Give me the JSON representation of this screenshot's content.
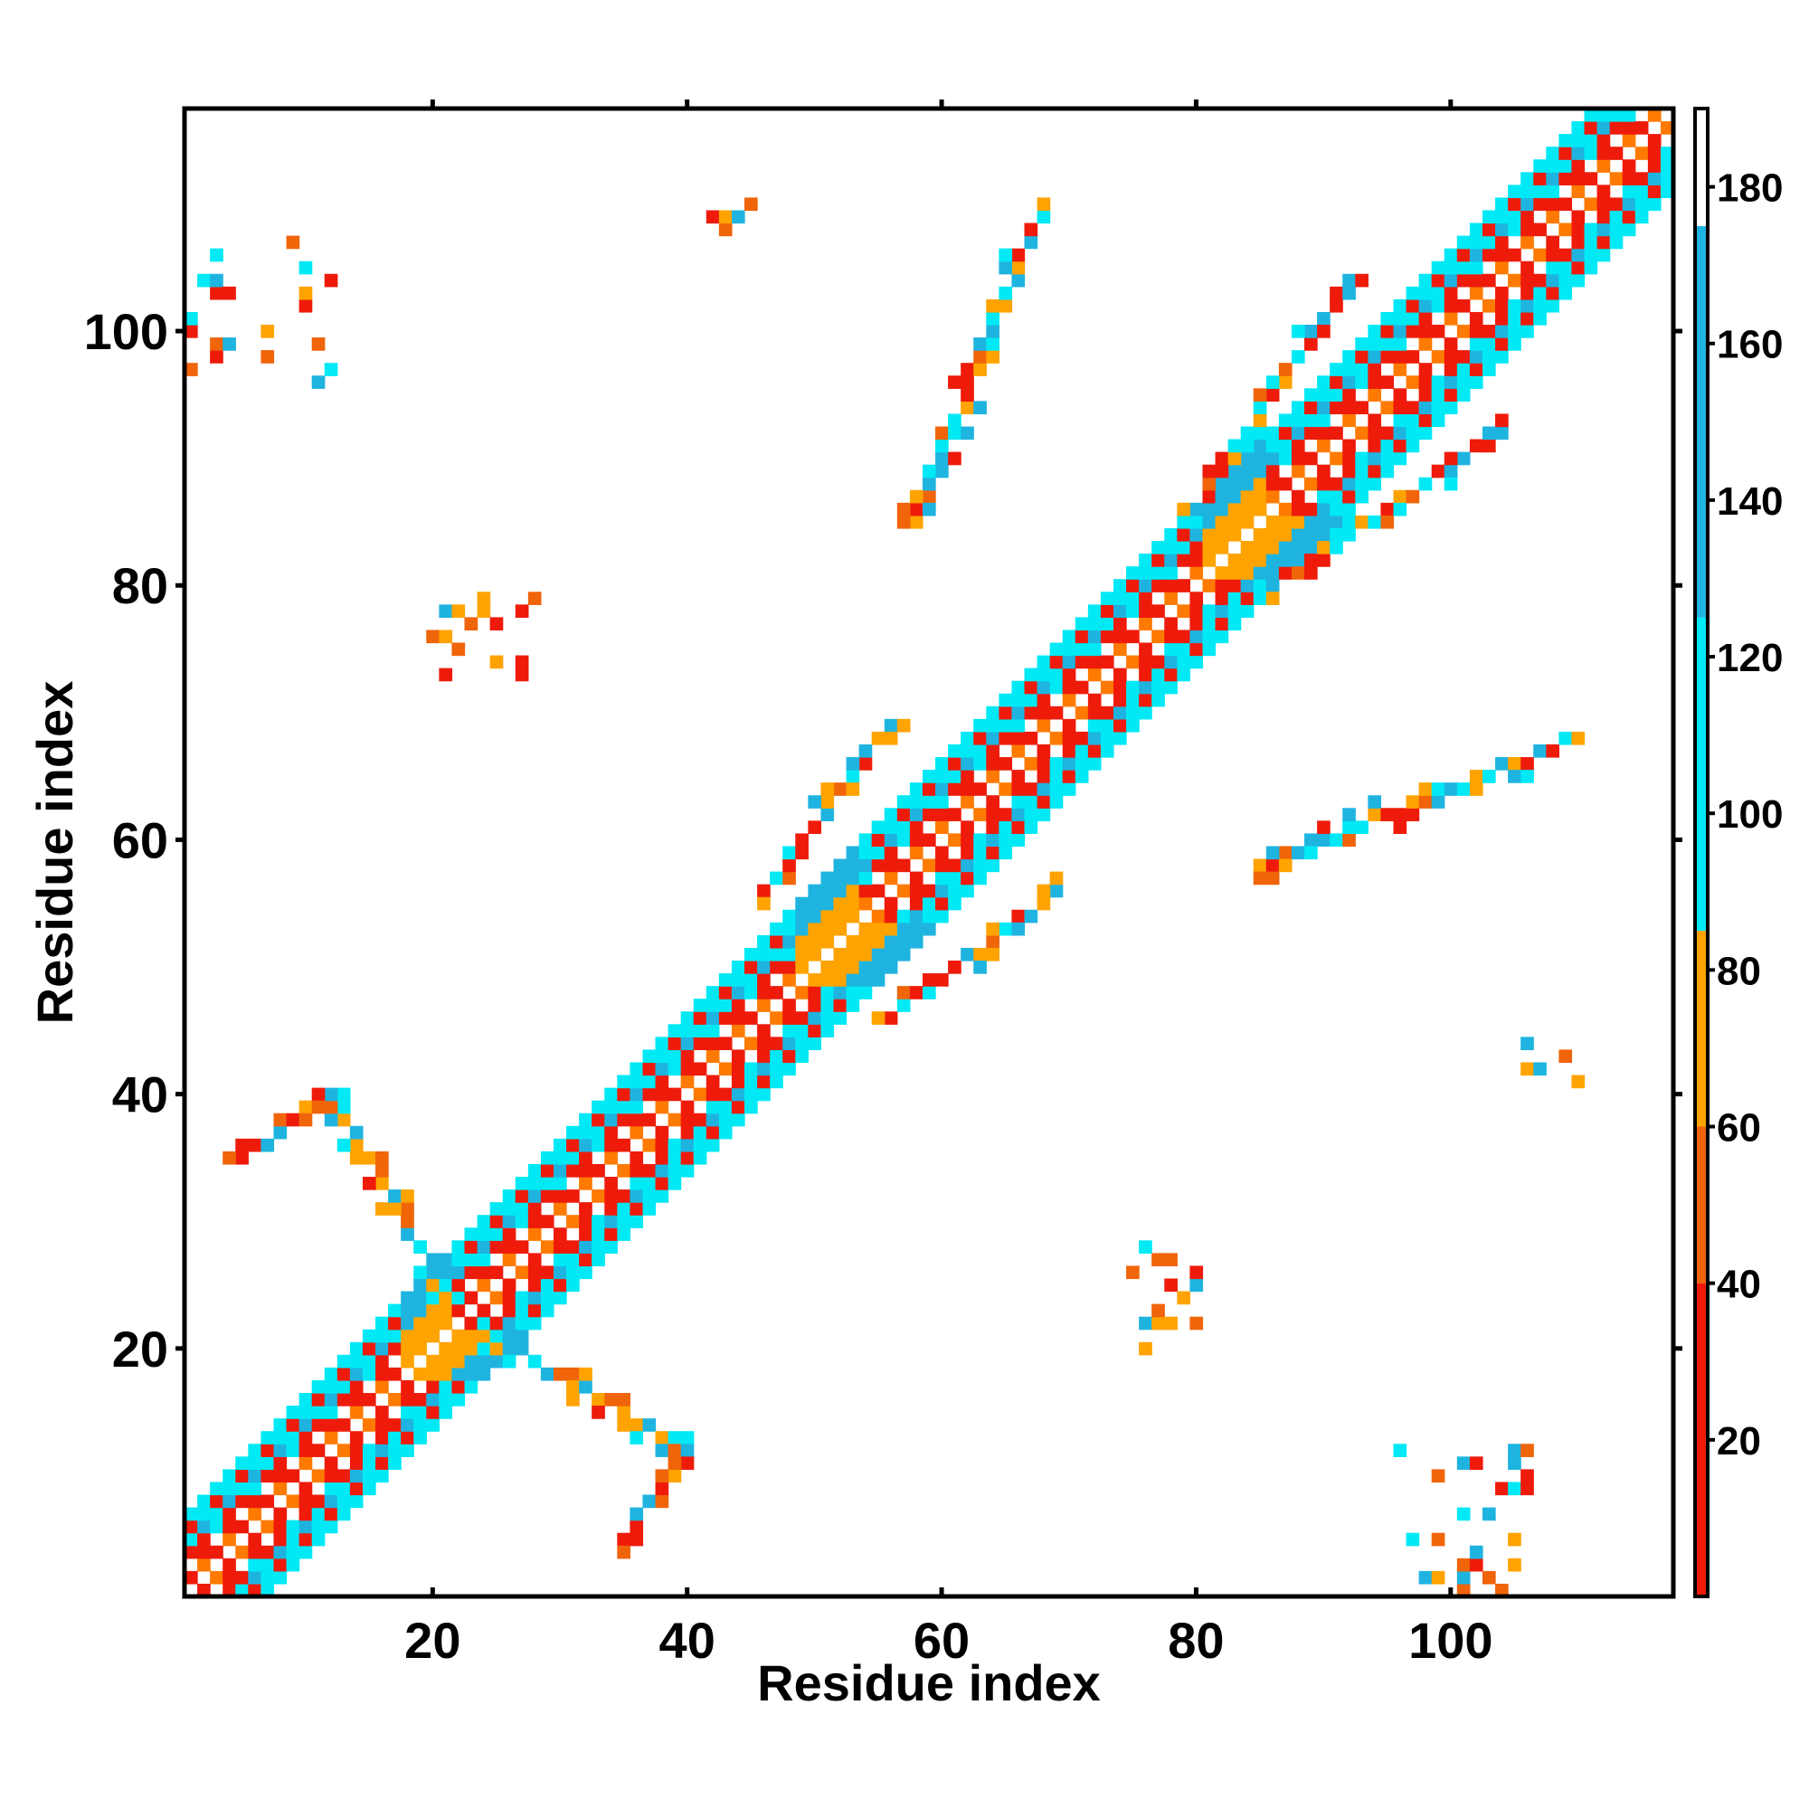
{
  "chart_data": {
    "type": "heatmap",
    "title": "",
    "xlabel": "Residue index",
    "ylabel": "Residue index",
    "xlim": [
      0.5,
      117.5
    ],
    "ylim": [
      0.5,
      117.5
    ],
    "x_ticks": [
      20,
      40,
      60,
      80,
      100
    ],
    "y_ticks": [
      20,
      40,
      60,
      80,
      100
    ],
    "colorbar": {
      "ticks": [
        20,
        40,
        60,
        80,
        100,
        120,
        140,
        160,
        180
      ],
      "range": [
        0,
        190
      ],
      "segments": [
        {
          "from": 0,
          "to": 40,
          "color": "#ee1b0b"
        },
        {
          "from": 40,
          "to": 60,
          "color": "#f0640a"
        },
        {
          "from": 60,
          "to": 85,
          "color": "#ffa300"
        },
        {
          "from": 85,
          "to": 125,
          "color": "#00e9f5"
        },
        {
          "from": 125,
          "to": 175,
          "color": "#1fb4e0"
        },
        {
          "from": 175,
          "to": 190,
          "color": "#ffffff"
        }
      ]
    },
    "diagonal_bands": [
      {
        "dmin": 1,
        "dmax": 3,
        "color": "#ee1b0b"
      },
      {
        "dmin": 2,
        "dmax": 3,
        "color": "#ff7a00"
      },
      {
        "dmin": 4,
        "dmax": 5,
        "color": "#00e9f5"
      },
      {
        "dmin": 5,
        "dmax": 6,
        "color": "#ee1b0b"
      }
    ],
    "strand_pairs": [
      {
        "i": [
          22,
          12
        ],
        "j": [
          23,
          40
        ],
        "direction": "anti"
      },
      {
        "i": [
          5,
          12
        ],
        "j": [
          35,
          40
        ],
        "direction": "parallel"
      },
      {
        "i": [
          46,
          56
        ],
        "j": [
          56,
          69
        ],
        "direction": "anti"
      },
      {
        "i": [
          58,
          68
        ],
        "j": [
          85,
          110
        ],
        "direction": "anti"
      },
      {
        "i": [
          80,
          92
        ],
        "j": [
          86,
          104
        ],
        "direction": "anti"
      }
    ],
    "corner_blocks": [
      {
        "x": [
          1,
          12
        ],
        "y": [
          96,
          107
        ]
      },
      {
        "x": [
          96,
          107
        ],
        "y": [
          1,
          12
        ]
      },
      {
        "x": [
          73,
          80
        ],
        "y": [
          20,
          28
        ]
      },
      {
        "x": [
          20,
          28
        ],
        "y": [
          73,
          80
        ]
      },
      {
        "x": [
          41,
          45
        ],
        "y": [
          106,
          110
        ]
      },
      {
        "x": [
          106,
          110
        ],
        "y": [
          41,
          45
        ]
      }
    ]
  }
}
